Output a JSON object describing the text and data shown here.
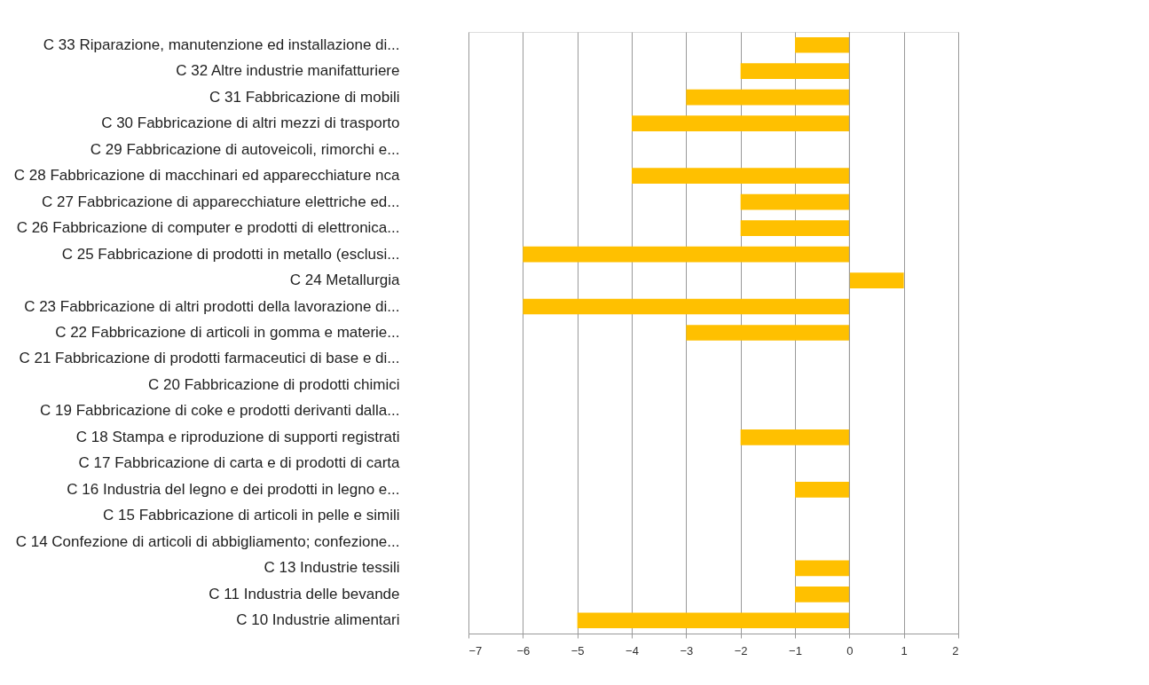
{
  "chart_data": {
    "type": "bar",
    "orientation": "horizontal",
    "categories": [
      "C 33 Riparazione, manutenzione ed installazione di...",
      "C 32 Altre industrie manifatturiere",
      "C 31 Fabbricazione di mobili",
      "C 30 Fabbricazione di altri mezzi di trasporto",
      "C 29 Fabbricazione di autoveicoli, rimorchi e...",
      "C 28 Fabbricazione di macchinari ed apparecchiature nca",
      "C 27 Fabbricazione di apparecchiature elettriche ed...",
      "C 26 Fabbricazione di computer e prodotti di elettronica...",
      "C 25 Fabbricazione di prodotti in metallo (esclusi...",
      "C 24 Metallurgia",
      "C 23 Fabbricazione di altri prodotti della lavorazione di...",
      "C 22 Fabbricazione di articoli in gomma e materie...",
      "C 21 Fabbricazione di prodotti farmaceutici di base e di...",
      "C 20 Fabbricazione di prodotti chimici",
      "C 19 Fabbricazione di coke e prodotti derivanti dalla...",
      "C 18 Stampa e riproduzione di supporti registrati",
      "C 17 Fabbricazione di carta e di prodotti di carta",
      "C 16 Industria del legno e dei prodotti in legno e...",
      "C 15 Fabbricazione di articoli in pelle e simili",
      "C 14 Confezione di articoli di abbigliamento; confezione...",
      "C 13 Industrie tessili",
      "C 11 Industria delle bevande",
      "C 10 Industrie alimentari"
    ],
    "values": [
      -1,
      -2,
      -3,
      -4,
      0,
      -4,
      -2,
      -2,
      -6,
      1,
      -6,
      -3,
      0,
      0,
      0,
      -2,
      0,
      -1,
      0,
      0,
      -1,
      -1,
      -5
    ],
    "color": "#ffc000",
    "xlim": [
      -7,
      2
    ],
    "xticks": [
      -7,
      -6,
      -5,
      -4,
      -3,
      -2,
      -1,
      0,
      1,
      2
    ],
    "grid": "x"
  }
}
